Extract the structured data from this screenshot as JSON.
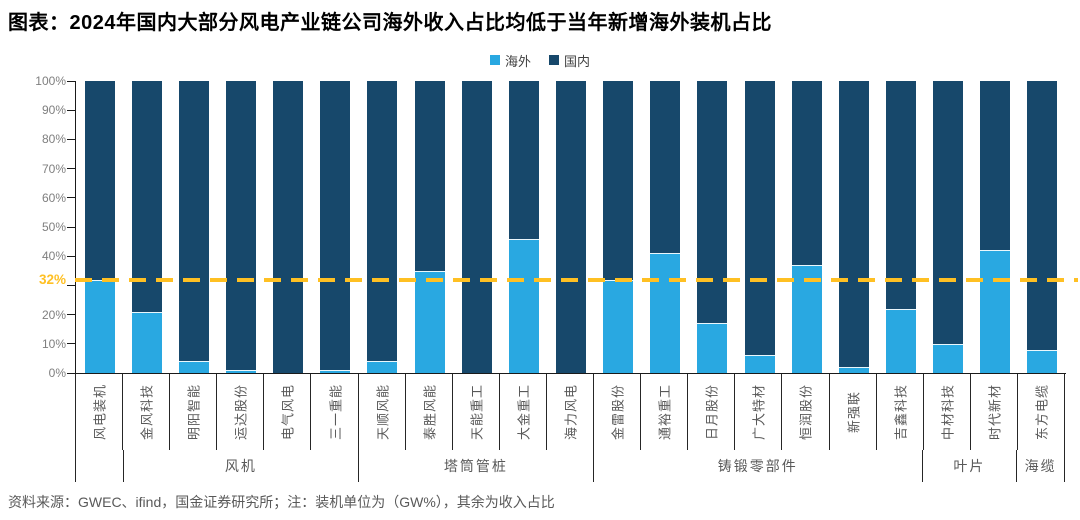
{
  "title": "图表：2024年国内大部分风电产业链公司海外收入占比均低于当年新增海外装机占比",
  "legend": {
    "overseas": "海外",
    "domestic": "国内"
  },
  "footer": "资料来源：GWEC、ifind，国金证券研究所；注：装机单位为（GW%），其余为收入占比",
  "colors": {
    "overseas": "#29A8E1",
    "domestic": "#17486B",
    "reference": "#FFC023"
  },
  "y_axis": {
    "max": 100,
    "ticks": [
      {
        "value": 100,
        "label": "100%"
      },
      {
        "value": 90,
        "label": "90%"
      },
      {
        "value": 80,
        "label": "80%"
      },
      {
        "value": 70,
        "label": "70%"
      },
      {
        "value": 60,
        "label": "60%"
      },
      {
        "value": 50,
        "label": "50%"
      },
      {
        "value": 40,
        "label": "40%"
      },
      {
        "value": 30,
        "label": ""
      },
      {
        "value": 20,
        "label": "20%"
      },
      {
        "value": 10,
        "label": "10%"
      },
      {
        "value": 0,
        "label": "0%"
      }
    ]
  },
  "chart_data": {
    "type": "bar",
    "stacked": true,
    "unit": "%",
    "title": "2024年国内大部分风电产业链公司海外收入占比均低于当年新增海外装机占比",
    "ylim": [
      0,
      100
    ],
    "grid": false,
    "legend_position": "top-center",
    "categories": [
      "风电装机",
      "金风科技",
      "明阳智能",
      "运达股份",
      "电气风电",
      "三一重能",
      "天顺风能",
      "泰胜风能",
      "天能重工",
      "大金重工",
      "海力风电",
      "金雷股份",
      "通裕重工",
      "日月股份",
      "广大特材",
      "恒润股份",
      "新强联",
      "吉鑫科技",
      "中材科技",
      "时代新材",
      "东方电缆"
    ],
    "series": [
      {
        "name": "海外",
        "values": [
          32,
          21,
          4,
          1,
          0,
          1,
          4,
          35,
          0,
          46,
          0,
          32,
          41,
          17,
          6,
          37,
          2,
          22,
          10,
          42,
          8
        ]
      },
      {
        "name": "国内",
        "values": [
          68,
          79,
          96,
          99,
          100,
          99,
          96,
          65,
          100,
          54,
          100,
          68,
          59,
          83,
          94,
          63,
          98,
          78,
          90,
          58,
          92
        ]
      }
    ],
    "groups": [
      {
        "label": "",
        "span": 1
      },
      {
        "label": "风机",
        "span": 5
      },
      {
        "label": "塔筒管桩",
        "span": 5
      },
      {
        "label": "铸锻零部件",
        "span": 7
      },
      {
        "label": "叶片",
        "span": 2
      },
      {
        "label": "海缆",
        "span": 1
      }
    ],
    "reference_line": {
      "value": 32,
      "label": "32%",
      "style": "dashed"
    }
  }
}
